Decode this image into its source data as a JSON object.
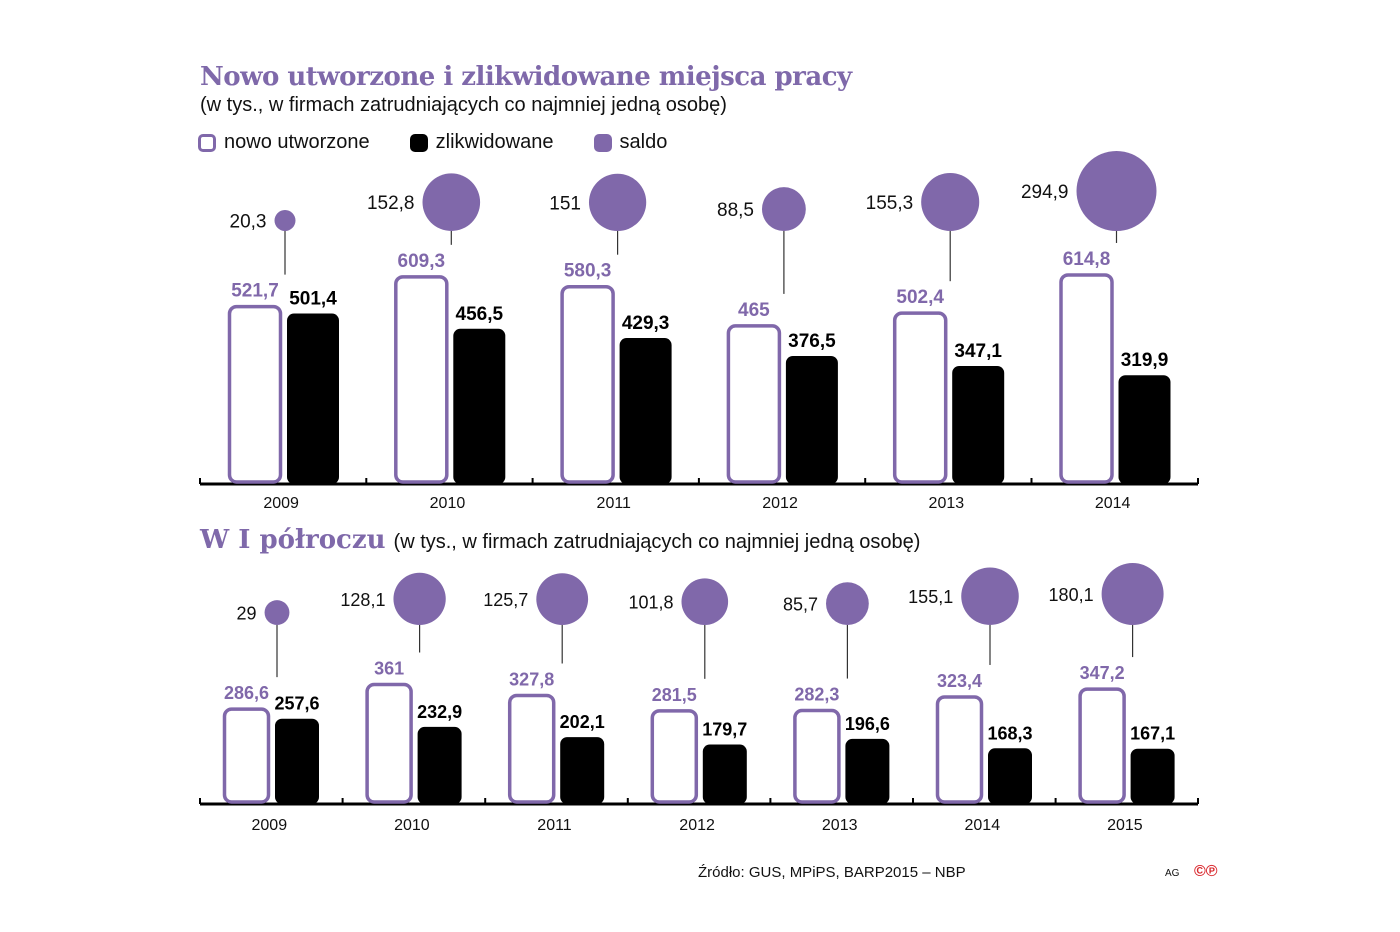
{
  "colors": {
    "purple": "#8068aa",
    "black": "#000000"
  },
  "legend": {
    "new": "nowo utworzone",
    "liq": "zlikwidowane",
    "saldo": "saldo"
  },
  "footer": {
    "source": "Źródło: GUS, MPiPS, BARP2015 – NBP",
    "credit": "AG",
    "logo": "©℗"
  },
  "chart_data": [
    {
      "type": "bar",
      "title": "Nowo utworzone i zlikwidowane miejsca pracy",
      "subtitle": "(w tys., w firmach zatrudniających co najmniej jedną osobę)",
      "categories": [
        "2009",
        "2010",
        "2011",
        "2012",
        "2013",
        "2014"
      ],
      "series": [
        {
          "name": "nowo utworzone",
          "values": [
            521.7,
            609.3,
            580.3,
            465,
            502.4,
            614.8
          ],
          "labels": [
            "521,7",
            "609,3",
            "580,3",
            "465",
            "502,4",
            "614,8"
          ]
        },
        {
          "name": "zlikwidowane",
          "values": [
            501.4,
            456.5,
            429.3,
            376.5,
            347.1,
            319.9
          ],
          "labels": [
            "501,4",
            "456,5",
            "429,3",
            "376,5",
            "347,1",
            "319,9"
          ]
        },
        {
          "name": "saldo",
          "values": [
            20.3,
            152.8,
            151,
            88.5,
            155.3,
            294.9
          ],
          "labels": [
            "20,3",
            "152,8",
            "151",
            "88,5",
            "155,3",
            "294,9"
          ]
        }
      ]
    },
    {
      "type": "bar",
      "title": "W I półroczu",
      "subtitle": "(w tys., w firmach zatrudniających co najmniej jedną osobę)",
      "categories": [
        "2009",
        "2010",
        "2011",
        "2012",
        "2013",
        "2014",
        "2015"
      ],
      "series": [
        {
          "name": "nowo utworzone",
          "values": [
            286.6,
            361,
            327.8,
            281.5,
            282.3,
            323.4,
            347.2
          ],
          "labels": [
            "286,6",
            "361",
            "327,8",
            "281,5",
            "282,3",
            "323,4",
            "347,2"
          ]
        },
        {
          "name": "zlikwidowane",
          "values": [
            257.6,
            232.9,
            202.1,
            179.7,
            196.6,
            168.3,
            167.1
          ],
          "labels": [
            "257,6",
            "232,9",
            "202,1",
            "179,7",
            "196,6",
            "168,3",
            "167,1"
          ]
        },
        {
          "name": "saldo",
          "values": [
            29,
            128.1,
            125.7,
            101.8,
            85.7,
            155.1,
            180.1
          ],
          "labels": [
            "29",
            "128,1",
            "125,7",
            "101,8",
            "85,7",
            "155,1",
            "180,1"
          ]
        }
      ]
    }
  ]
}
